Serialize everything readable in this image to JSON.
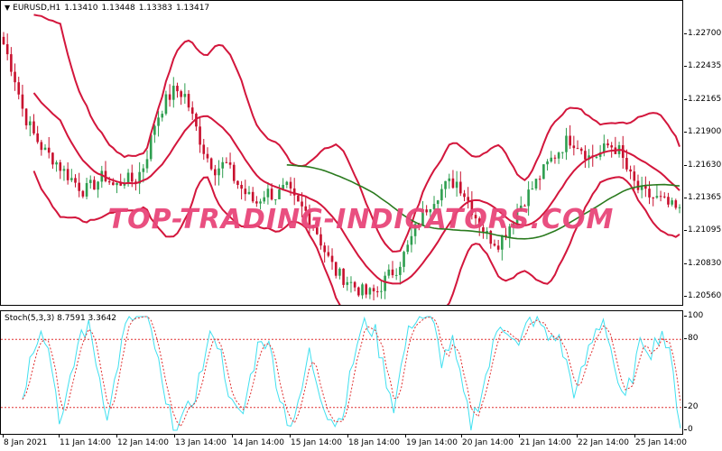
{
  "header": {
    "symbol": "EURUSD,H1",
    "open": "1.13410",
    "high": "1.13448",
    "low": "1.13383",
    "close": "1.13417"
  },
  "stoch_header": "Stoch(5,3,3) 8.7591 3.3642",
  "watermark": "TOP-TRADING-INDICATORS.COM",
  "colors": {
    "candle_up": "#2e9e4f",
    "candle_down": "#c8102e",
    "bands": "#d3163c",
    "ma": "#2a7a1e",
    "stoch_main": "#40e0f0",
    "stoch_signal": "#e03030",
    "levels": "#e03030"
  },
  "main_yaxis": [
    "1.22700",
    "1.22435",
    "1.22165",
    "1.21900",
    "1.21630",
    "1.21365",
    "1.21095",
    "1.20830",
    "1.20560"
  ],
  "stoch_yaxis": [
    "100",
    "80",
    "20",
    "0"
  ],
  "x_axis": [
    "8 Jan 2021",
    "11 Jan 14:00",
    "12 Jan 14:00",
    "13 Jan 14:00",
    "14 Jan 14:00",
    "15 Jan 14:00",
    "18 Jan 14:00",
    "19 Jan 14:00",
    "20 Jan 14:00",
    "21 Jan 14:00",
    "22 Jan 14:00",
    "25 Jan 14:00"
  ],
  "chart_data": {
    "type": "candlestick",
    "price_scale": [
      1.2056,
      1.227
    ],
    "stoch_levels": [
      20,
      80
    ],
    "close_path": [
      1.2262,
      1.2238,
      1.2205,
      1.2188,
      1.2175,
      1.2168,
      1.2158,
      1.215,
      1.2142,
      1.2148,
      1.2155,
      1.2145,
      1.2152,
      1.215,
      1.2165,
      1.2198,
      1.2215,
      1.2225,
      1.222,
      1.2195,
      1.2172,
      1.216,
      1.2165,
      1.215,
      1.214,
      1.2132,
      1.2142,
      1.2138,
      1.2145,
      1.2132,
      1.2125,
      1.211,
      1.209,
      1.2075,
      1.207,
      1.2063,
      1.2058,
      1.206,
      1.2072,
      1.208,
      1.2095,
      1.2115,
      1.213,
      1.214,
      1.2148,
      1.215,
      1.2135,
      1.2118,
      1.2105,
      1.21,
      1.2112,
      1.2128,
      1.214,
      1.2152,
      1.2165,
      1.2175,
      1.2185,
      1.218,
      1.217,
      1.2172,
      1.218,
      1.2175,
      1.2155,
      1.2142,
      1.2138,
      1.2135,
      1.213,
      1.2125
    ],
    "stoch_main_path": [
      30,
      70,
      95,
      60,
      5,
      40,
      85,
      90,
      50,
      10,
      60,
      98,
      100,
      100,
      70,
      20,
      5,
      10,
      30,
      60,
      90,
      60,
      20,
      10,
      50,
      85,
      70,
      30,
      5,
      20,
      70,
      40,
      15,
      5,
      30,
      75,
      95,
      85,
      50,
      20,
      70,
      100,
      100,
      95,
      60,
      80,
      40,
      5,
      30,
      60,
      95,
      90,
      70,
      95,
      100,
      80,
      85,
      60,
      30,
      60,
      85,
      100,
      60,
      20,
      50,
      80,
      70,
      90,
      60,
      5
    ]
  }
}
